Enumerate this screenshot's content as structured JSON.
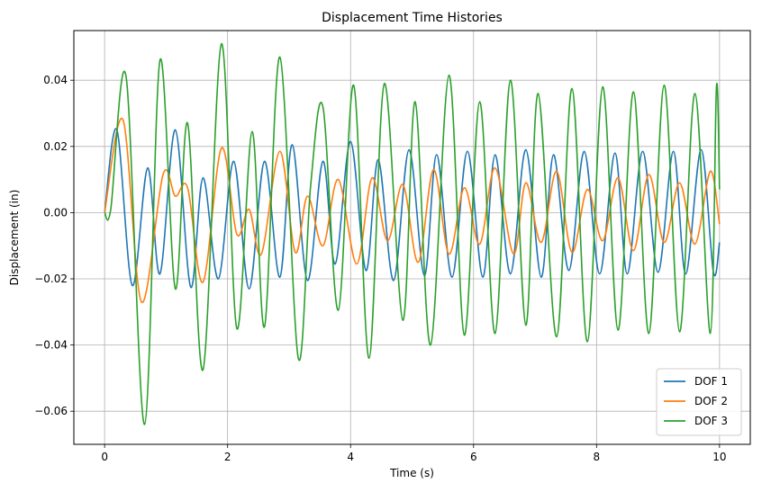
{
  "chart_data": {
    "type": "line",
    "title": "Displacement Time Histories",
    "xlabel": "Time (s)",
    "ylabel": "Displacement (in)",
    "xlim": [
      -0.5,
      10.5
    ],
    "ylim": [
      -0.07,
      0.055
    ],
    "xticks": [
      0,
      2,
      4,
      6,
      8,
      10
    ],
    "xtick_labels": [
      "0",
      "2",
      "4",
      "6",
      "8",
      "10"
    ],
    "yticks": [
      -0.06,
      -0.04,
      -0.02,
      0.0,
      0.02,
      0.04
    ],
    "ytick_labels": [
      "−0.06",
      "−0.04",
      "−0.02",
      "0.00",
      "0.02",
      "0.04"
    ],
    "grid": true,
    "legend_position": "bottom-right",
    "series": [
      {
        "name": "DOF 1",
        "color": "#1f77b4",
        "points": [
          [
            0,
            0
          ],
          [
            0.2,
            0.025
          ],
          [
            0.45,
            -0.022
          ],
          [
            0.7,
            0.0135
          ],
          [
            0.9,
            -0.0185
          ],
          [
            1.15,
            0.025
          ],
          [
            1.4,
            -0.0225
          ],
          [
            1.6,
            0.0105
          ],
          [
            1.85,
            -0.02
          ],
          [
            2.1,
            0.0155
          ],
          [
            2.35,
            -0.023
          ],
          [
            2.6,
            0.0155
          ],
          [
            2.85,
            -0.0195
          ],
          [
            3.05,
            0.0205
          ],
          [
            3.3,
            -0.0205
          ],
          [
            3.55,
            0.0155
          ],
          [
            3.75,
            -0.0155
          ],
          [
            4.0,
            0.0215
          ],
          [
            4.25,
            -0.0175
          ],
          [
            4.45,
            0.016
          ],
          [
            4.7,
            -0.0205
          ],
          [
            4.95,
            0.019
          ],
          [
            5.2,
            -0.019
          ],
          [
            5.4,
            0.0175
          ],
          [
            5.65,
            -0.0195
          ],
          [
            5.9,
            0.0185
          ],
          [
            6.15,
            -0.0195
          ],
          [
            6.35,
            0.0175
          ],
          [
            6.6,
            -0.0185
          ],
          [
            6.85,
            0.019
          ],
          [
            7.1,
            -0.0195
          ],
          [
            7.3,
            0.0175
          ],
          [
            7.55,
            -0.0175
          ],
          [
            7.8,
            0.0185
          ],
          [
            8.05,
            -0.0185
          ],
          [
            8.3,
            0.018
          ],
          [
            8.5,
            -0.0185
          ],
          [
            8.75,
            0.0185
          ],
          [
            9.0,
            -0.018
          ],
          [
            9.25,
            0.0185
          ],
          [
            9.45,
            -0.0185
          ],
          [
            9.7,
            0.019
          ],
          [
            9.9,
            -0.018
          ],
          [
            10.0,
            -0.009
          ]
        ]
      },
      {
        "name": "DOF 2",
        "color": "#ff7f0e",
        "points": [
          [
            0,
            0
          ],
          [
            0.3,
            0.028
          ],
          [
            0.6,
            -0.027
          ],
          [
            0.95,
            0.0115
          ],
          [
            1.15,
            0.005
          ],
          [
            1.35,
            0.0075
          ],
          [
            1.6,
            -0.021
          ],
          [
            1.9,
            0.0195
          ],
          [
            2.15,
            -0.0065
          ],
          [
            2.35,
            0.001
          ],
          [
            2.55,
            -0.0125
          ],
          [
            2.85,
            0.0185
          ],
          [
            3.1,
            -0.012
          ],
          [
            3.3,
            0.005
          ],
          [
            3.55,
            -0.01
          ],
          [
            3.8,
            0.01
          ],
          [
            4.1,
            -0.0155
          ],
          [
            4.35,
            0.0105
          ],
          [
            4.6,
            -0.0085
          ],
          [
            4.85,
            0.0085
          ],
          [
            5.1,
            -0.015
          ],
          [
            5.35,
            0.013
          ],
          [
            5.6,
            -0.0125
          ],
          [
            5.85,
            0.0075
          ],
          [
            6.1,
            -0.0095
          ],
          [
            6.35,
            0.0135
          ],
          [
            6.65,
            -0.0125
          ],
          [
            6.85,
            0.009
          ],
          [
            7.1,
            -0.009
          ],
          [
            7.35,
            0.0125
          ],
          [
            7.6,
            -0.012
          ],
          [
            7.85,
            0.007
          ],
          [
            8.1,
            -0.0085
          ],
          [
            8.35,
            0.0105
          ],
          [
            8.6,
            -0.0115
          ],
          [
            8.85,
            0.0115
          ],
          [
            9.1,
            -0.009
          ],
          [
            9.35,
            0.009
          ],
          [
            9.6,
            -0.0095
          ],
          [
            9.85,
            0.0125
          ],
          [
            10.0,
            -0.0035
          ]
        ]
      },
      {
        "name": "DOF 3",
        "color": "#2ca02c",
        "points": [
          [
            0,
            0
          ],
          [
            0.1,
            0.001
          ],
          [
            0.35,
            0.041
          ],
          [
            0.65,
            -0.064
          ],
          [
            0.9,
            0.046
          ],
          [
            1.15,
            -0.023
          ],
          [
            1.35,
            0.027
          ],
          [
            1.6,
            -0.0475
          ],
          [
            1.9,
            0.051
          ],
          [
            2.15,
            -0.035
          ],
          [
            2.4,
            0.0245
          ],
          [
            2.6,
            -0.0345
          ],
          [
            2.85,
            0.047
          ],
          [
            3.15,
            -0.044
          ],
          [
            3.35,
            0.008
          ],
          [
            3.55,
            0.032
          ],
          [
            3.8,
            -0.0295
          ],
          [
            4.05,
            0.0385
          ],
          [
            4.3,
            -0.044
          ],
          [
            4.55,
            0.039
          ],
          [
            4.85,
            -0.0325
          ],
          [
            5.05,
            0.0335
          ],
          [
            5.3,
            -0.04
          ],
          [
            5.6,
            0.0415
          ],
          [
            5.85,
            -0.037
          ],
          [
            6.1,
            0.0335
          ],
          [
            6.35,
            -0.0365
          ],
          [
            6.6,
            0.04
          ],
          [
            6.85,
            -0.034
          ],
          [
            7.05,
            0.036
          ],
          [
            7.35,
            -0.0375
          ],
          [
            7.6,
            0.0375
          ],
          [
            7.85,
            -0.039
          ],
          [
            8.1,
            0.038
          ],
          [
            8.35,
            -0.0355
          ],
          [
            8.6,
            0.0365
          ],
          [
            8.85,
            -0.0365
          ],
          [
            9.1,
            0.0385
          ],
          [
            9.35,
            -0.036
          ],
          [
            9.6,
            0.036
          ],
          [
            9.85,
            -0.0365
          ],
          [
            9.95,
            0.038
          ],
          [
            10.0,
            0.007
          ]
        ]
      }
    ]
  }
}
